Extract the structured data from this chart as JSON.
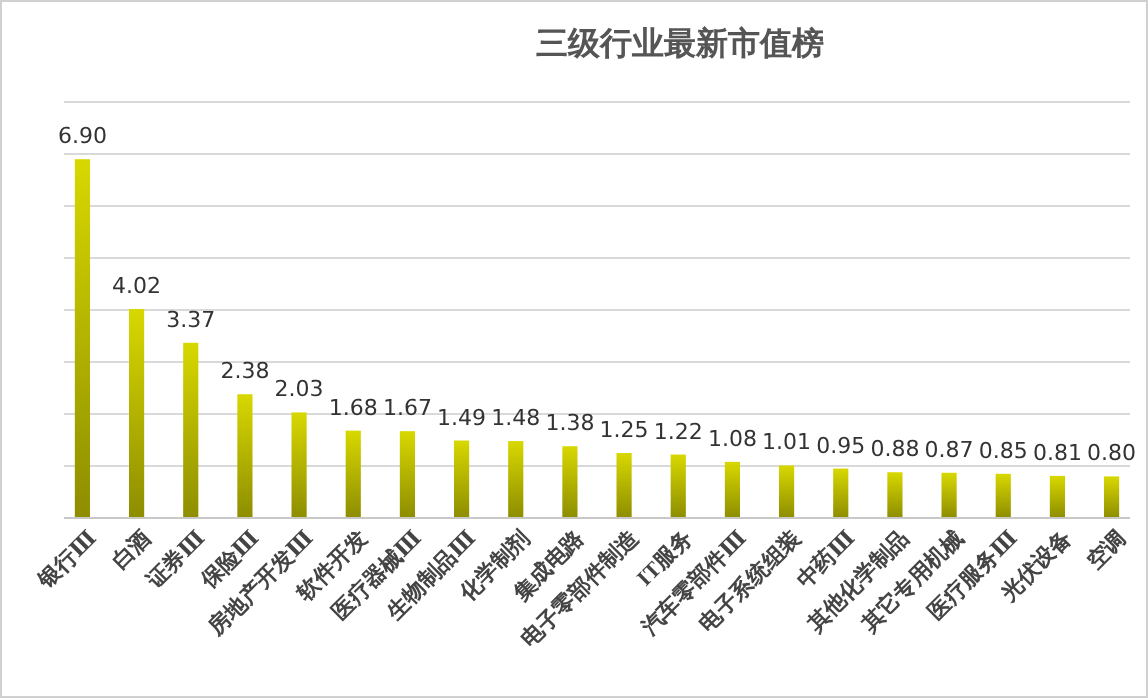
{
  "chart_data": {
    "type": "bar",
    "title": "三级行业最新市值榜",
    "categories": [
      "银行Ⅲ",
      "白酒",
      "证券Ⅲ",
      "保险Ⅲ",
      "房地产开发Ⅲ",
      "软件开发",
      "医疗器械Ⅲ",
      "生物制品Ⅲ",
      "化学制剂",
      "集成电路",
      "电子零部件制造",
      "IT服务",
      "汽车零部件Ⅲ",
      "电子系统组装",
      "中药Ⅲ",
      "其他化学制品",
      "其它专用机械",
      "医疗服务Ⅲ",
      "光伏设备",
      "空调"
    ],
    "values": [
      6.9,
      4.02,
      3.37,
      2.38,
      2.03,
      1.68,
      1.67,
      1.49,
      1.48,
      1.38,
      1.25,
      1.22,
      1.08,
      1.01,
      0.95,
      0.88,
      0.87,
      0.85,
      0.81,
      0.8
    ],
    "value_labels": [
      "6.90",
      "4.02",
      "3.37",
      "2.38",
      "2.03",
      "1.68",
      "1.67",
      "1.49",
      "1.48",
      "1.38",
      "1.25",
      "1.22",
      "1.08",
      "1.01",
      "0.95",
      "0.88",
      "0.87",
      "0.85",
      "0.81",
      "0.80"
    ],
    "color": "#d8d800",
    "ylim": [
      0,
      8
    ],
    "yticks": [
      {
        "value": 0,
        "label": null
      },
      {
        "value": 1,
        "label": null
      },
      {
        "value": 2,
        "label": null
      },
      {
        "value": 3,
        "label": null
      },
      {
        "value": 4,
        "label": null
      },
      {
        "value": 5,
        "label": null
      },
      {
        "value": 6,
        "label": null
      },
      {
        "value": 7,
        "label": null
      },
      {
        "value": 8,
        "label": null
      }
    ],
    "grid": "y",
    "tick_labels": "x"
  }
}
